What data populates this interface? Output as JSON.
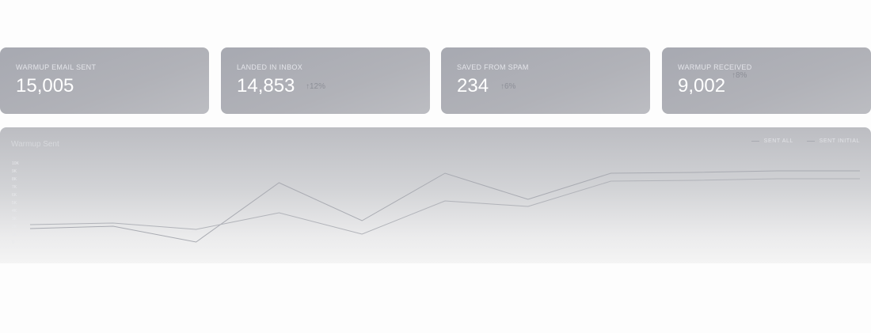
{
  "stats": [
    {
      "label": "WARMUP EMAIL SENT",
      "value": "15,005",
      "delta": ""
    },
    {
      "label": "LANDED IN INBOX",
      "value": "14,853",
      "delta": "↑12%"
    },
    {
      "label": "SAVED FROM SPAM",
      "value": "234",
      "delta": "↑6%"
    },
    {
      "label": "WARMUP RECEIVED",
      "value": "9,002",
      "delta": "↑8%"
    }
  ],
  "chart": {
    "title": "Warmup Sent",
    "legend": [
      "SENT ALL",
      "SENT INITIAL"
    ]
  },
  "chart_data": {
    "type": "line",
    "title": "Warmup Sent",
    "xlabel": "",
    "ylabel": "",
    "y_ticks": [
      "10K",
      "9K",
      "8K",
      "7K",
      "6K",
      "5K",
      "4K",
      "3K",
      "2K",
      "1K",
      "0"
    ],
    "ylim": [
      0,
      10000
    ],
    "x": [
      0,
      1,
      2,
      3,
      4,
      5,
      6,
      7,
      8,
      9,
      10
    ],
    "series": [
      {
        "name": "SENT ALL",
        "color": "#a9abb2",
        "values": [
          1700,
          2000,
          0,
          7500,
          2700,
          8700,
          5400,
          8700,
          8800,
          9000,
          9000
        ]
      },
      {
        "name": "SENT INITIAL",
        "color": "#b1b3b9",
        "values": [
          2200,
          2400,
          1600,
          3700,
          1000,
          5200,
          4500,
          7700,
          7800,
          8000,
          8000
        ]
      }
    ],
    "grid": false,
    "legend_position": "top-right"
  }
}
